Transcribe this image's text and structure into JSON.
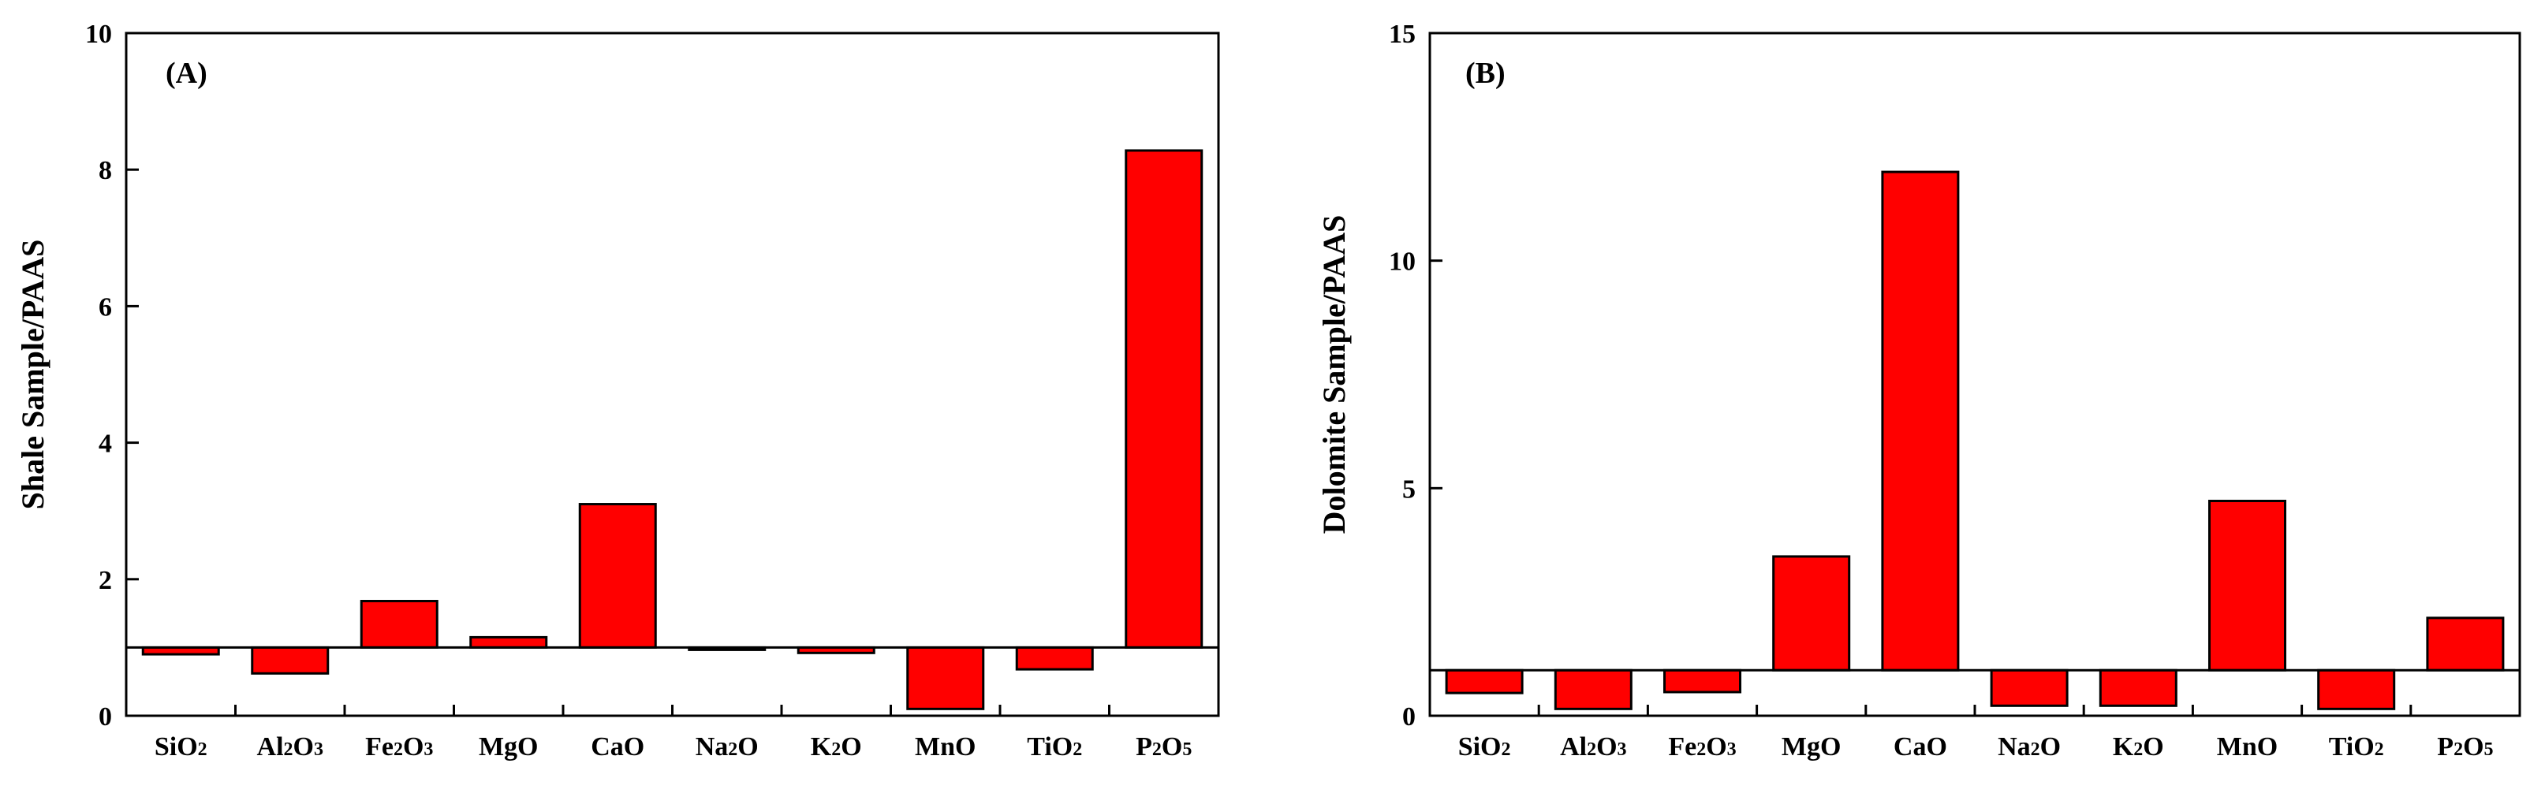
{
  "figure": {
    "colors": {
      "bar_fill": "#ff0000",
      "bar_stroke": "#000000",
      "axis": "#000000"
    }
  },
  "chart_data": [
    {
      "type": "bar",
      "panel_label": "(A)",
      "ylabel": "Shale Sample/PAAS",
      "xlabel": "",
      "ylim": [
        0,
        10
      ],
      "yticks": [
        "0",
        "2",
        "4",
        "6",
        "8",
        "10"
      ],
      "baseline": 1,
      "categories": [
        {
          "base": "SiO",
          "sub1": "2",
          "mid": "",
          "sub2": ""
        },
        {
          "base": "Al",
          "sub1": "2",
          "mid": "O",
          "sub2": "3"
        },
        {
          "base": "Fe",
          "sub1": "2",
          "mid": "O",
          "sub2": "3"
        },
        {
          "base": "MgO",
          "sub1": "",
          "mid": "",
          "sub2": ""
        },
        {
          "base": "CaO",
          "sub1": "",
          "mid": "",
          "sub2": ""
        },
        {
          "base": "Na",
          "sub1": "2",
          "mid": "O",
          "sub2": ""
        },
        {
          "base": "K",
          "sub1": "2",
          "mid": "O",
          "sub2": ""
        },
        {
          "base": "MnO",
          "sub1": "",
          "mid": "",
          "sub2": ""
        },
        {
          "base": "TiO",
          "sub1": "2",
          "mid": "",
          "sub2": ""
        },
        {
          "base": "P",
          "sub1": "2",
          "mid": "O",
          "sub2": "5"
        }
      ],
      "values": [
        0.9,
        0.62,
        1.68,
        1.15,
        3.1,
        0.98,
        0.92,
        0.1,
        0.68,
        8.28
      ]
    },
    {
      "type": "bar",
      "panel_label": "(B)",
      "ylabel": "Dolomite Sample/PAAS",
      "xlabel": "",
      "ylim": [
        0,
        15
      ],
      "yticks": [
        "0",
        "5",
        "10",
        "15"
      ],
      "baseline": 1,
      "categories": [
        {
          "base": "SiO",
          "sub1": "2",
          "mid": "",
          "sub2": ""
        },
        {
          "base": "Al",
          "sub1": "2",
          "mid": "O",
          "sub2": "3"
        },
        {
          "base": "Fe",
          "sub1": "2",
          "mid": "O",
          "sub2": "3"
        },
        {
          "base": "MgO",
          "sub1": "",
          "mid": "",
          "sub2": ""
        },
        {
          "base": "CaO",
          "sub1": "",
          "mid": "",
          "sub2": ""
        },
        {
          "base": "Na",
          "sub1": "2",
          "mid": "O",
          "sub2": ""
        },
        {
          "base": "K",
          "sub1": "2",
          "mid": "O",
          "sub2": ""
        },
        {
          "base": "MnO",
          "sub1": "",
          "mid": "",
          "sub2": ""
        },
        {
          "base": "TiO",
          "sub1": "2",
          "mid": "",
          "sub2": ""
        },
        {
          "base": "P",
          "sub1": "2",
          "mid": "O",
          "sub2": "5"
        }
      ],
      "values": [
        0.5,
        0.15,
        0.52,
        3.5,
        11.95,
        0.22,
        0.22,
        4.72,
        0.15,
        2.15
      ]
    }
  ]
}
